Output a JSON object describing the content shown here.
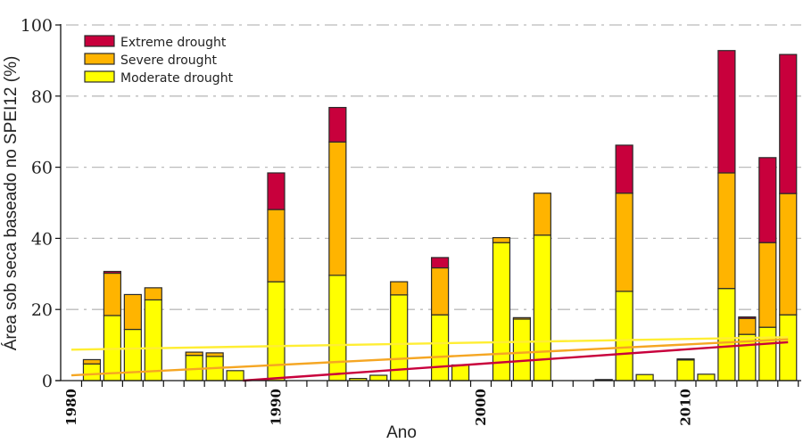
{
  "chart_data": {
    "type": "bar",
    "stacked": true,
    "title": "",
    "xlabel": "Ano",
    "ylabel": "Área sob seca baseado no SPEI12 (%)",
    "ylim": [
      0,
      100
    ],
    "xlim": [
      1979.5,
      2015.5
    ],
    "yticks": [
      0,
      20,
      40,
      60,
      80,
      100
    ],
    "xtick_labels": [
      "1980",
      "1990",
      "2000",
      "2010"
    ],
    "grid": "horizontal dash-dot",
    "legend_position": "top-left",
    "years": [
      1981,
      1982,
      1983,
      1984,
      1986,
      1987,
      1988,
      1990,
      1993,
      1994,
      1995,
      1996,
      1998,
      1999,
      2001,
      2002,
      2003,
      2006,
      2007,
      2008,
      2010,
      2011,
      2012,
      2013,
      2014,
      2015
    ],
    "series": [
      {
        "name": "Moderate drought",
        "color": "#FFFF00",
        "values": [
          4.7,
          18.3,
          14.4,
          22.7,
          7.1,
          6.8,
          2.8,
          27.8,
          29.6,
          0.6,
          1.5,
          24.1,
          18.5,
          4.4,
          38.8,
          17.3,
          40.9,
          0.3,
          25.1,
          1.7,
          5.8,
          1.8,
          25.9,
          13.0,
          15.0,
          18.5
        ]
      },
      {
        "name": "Severe drought",
        "color": "#FFB400",
        "values": [
          1.2,
          11.9,
          9.8,
          3.4,
          0.9,
          1.0,
          0,
          20.3,
          37.5,
          0,
          0,
          3.7,
          13.2,
          0,
          1.4,
          0.4,
          11.8,
          0,
          27.6,
          0,
          0.3,
          0,
          32.5,
          4.5,
          23.8,
          34.1
        ]
      },
      {
        "name": "Extreme drought",
        "color": "#C8003C",
        "values": [
          0,
          0.5,
          0,
          0,
          0,
          0,
          0,
          10.3,
          9.7,
          0,
          0,
          0,
          2.9,
          0,
          0,
          0,
          0,
          0,
          13.5,
          0,
          0,
          0,
          34.4,
          0.4,
          23.9,
          39.1
        ]
      }
    ],
    "trend_lines": [
      {
        "name": "Moderate drought trend",
        "color": "#FFEE33",
        "x": [
          1980,
          2015
        ],
        "y": [
          8.7,
          12.2
        ]
      },
      {
        "name": "Severe drought trend",
        "color": "#F5A623",
        "x": [
          1980,
          2015
        ],
        "y": [
          1.5,
          11.6
        ]
      },
      {
        "name": "Extreme drought trend",
        "color": "#C8003C",
        "x": [
          1980,
          2015
        ],
        "y": [
          -3.4,
          10.8
        ]
      }
    ],
    "legend": [
      "Extreme drought",
      "Severe drought",
      "Moderate drought"
    ]
  }
}
